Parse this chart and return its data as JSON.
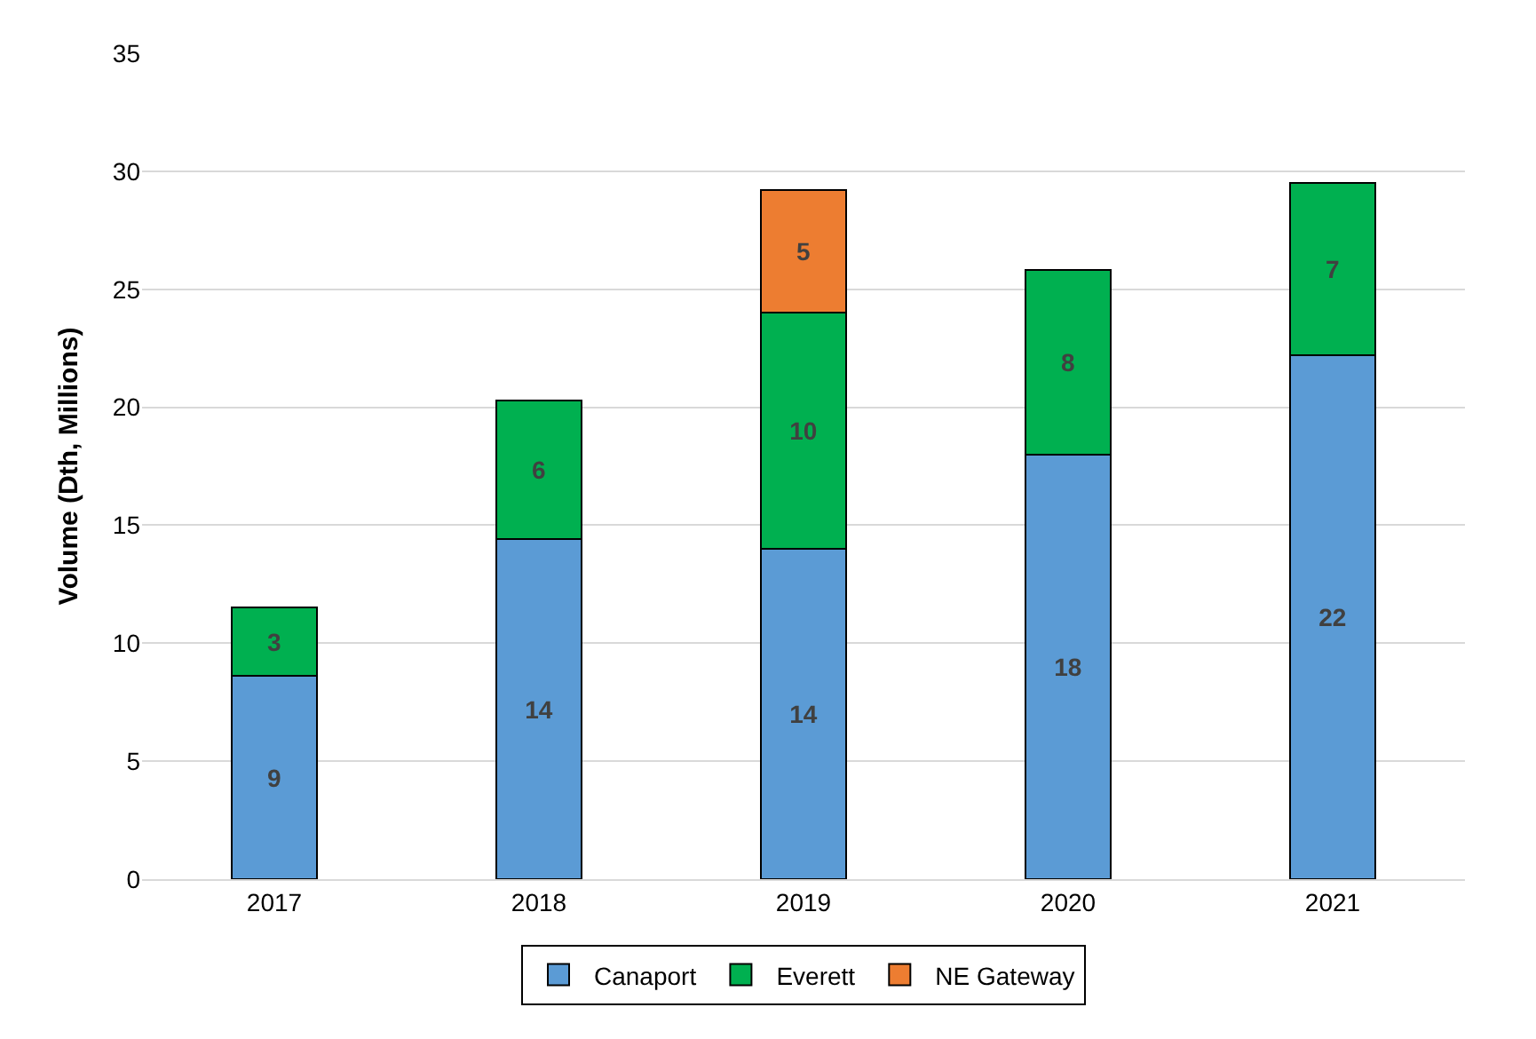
{
  "chart_data": {
    "type": "bar",
    "stacked": true,
    "ylabel": "Volume (Dth, Millions)",
    "categories": [
      "2017",
      "2018",
      "2019",
      "2020",
      "2021"
    ],
    "series": [
      {
        "name": "Canaport",
        "color": "#5b9bd5",
        "values": [
          8.6,
          14.4,
          14.0,
          18.0,
          22.2
        ],
        "value_labels": [
          "9",
          "14",
          "14",
          "18",
          "22"
        ]
      },
      {
        "name": "Everett",
        "color": "#00b050",
        "values": [
          2.9,
          5.9,
          10.0,
          7.8,
          7.3
        ],
        "value_labels": [
          "3",
          "6",
          "10",
          "8",
          "7"
        ]
      },
      {
        "name": "NE Gateway",
        "color": "#ed7d31",
        "values": [
          null,
          null,
          5.2,
          null,
          null
        ],
        "value_labels": [
          null,
          null,
          "5",
          null,
          null
        ]
      }
    ],
    "ylim": [
      0,
      35
    ],
    "yticks": [
      0,
      5,
      10,
      15,
      20,
      25,
      30,
      35
    ],
    "grid": "y",
    "legend": "bottom"
  }
}
